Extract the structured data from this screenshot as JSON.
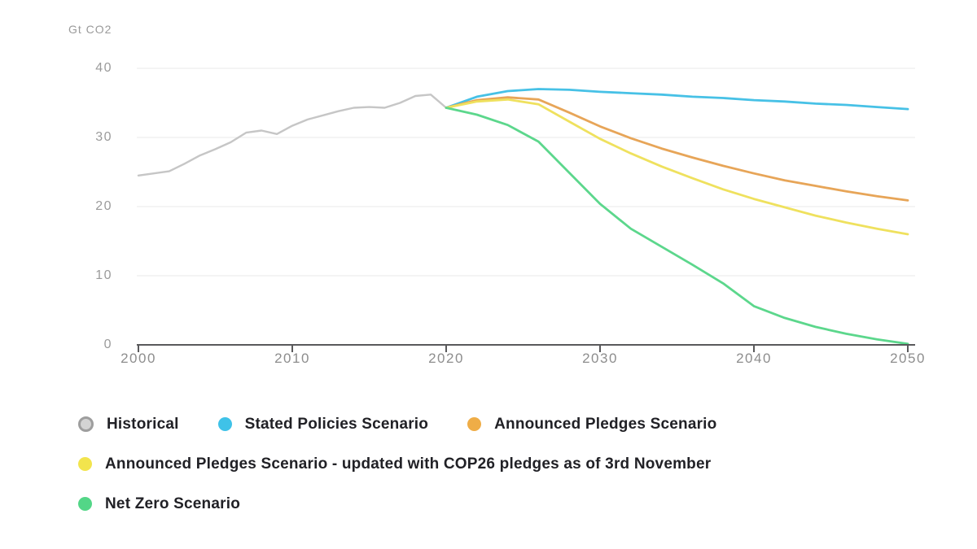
{
  "unit_label": "Gt CO2",
  "legend": {
    "items": [
      {
        "label": "Historical",
        "color": "#9e9e9e",
        "fill": "#d3d3d3",
        "ring": true
      },
      {
        "label": "Stated Policies Scenario",
        "color": "#3fc2e8",
        "ring": false
      },
      {
        "label": "Announced Pledges Scenario",
        "color": "#efad47",
        "ring": false
      },
      {
        "label": "Announced Pledges Scenario - updated with COP26 pledges as of 3rd November",
        "color": "#f2e44d",
        "ring": false
      },
      {
        "label": "Net Zero Scenario",
        "color": "#53d687",
        "ring": false
      }
    ]
  },
  "chart_data": {
    "type": "line",
    "title": "",
    "xlabel": "",
    "ylabel": "Gt CO2",
    "xlim": [
      2000,
      2050
    ],
    "ylim": [
      0,
      40
    ],
    "x_ticks": [
      2000,
      2010,
      2020,
      2030,
      2040,
      2050
    ],
    "y_ticks": [
      0,
      10,
      20,
      30,
      40
    ],
    "grid": "horizontal",
    "legend_position": "bottom",
    "series": [
      {
        "name": "Historical",
        "color": "#c6c6c6",
        "width": 2.4,
        "x": [
          2000,
          2001,
          2002,
          2003,
          2004,
          2005,
          2006,
          2007,
          2008,
          2009,
          2010,
          2011,
          2012,
          2013,
          2014,
          2015,
          2016,
          2017,
          2018,
          2019,
          2020
        ],
        "values": [
          24.5,
          24.8,
          25.1,
          26.2,
          27.4,
          28.3,
          29.3,
          30.7,
          31.0,
          30.5,
          31.7,
          32.6,
          33.2,
          33.8,
          34.3,
          34.4,
          34.3,
          35.0,
          36.0,
          36.2,
          34.3
        ]
      },
      {
        "name": "Stated Policies Scenario",
        "color": "#47c1e6",
        "width": 2.8,
        "x": [
          2020,
          2022,
          2024,
          2026,
          2028,
          2030,
          2032,
          2034,
          2036,
          2038,
          2040,
          2042,
          2044,
          2046,
          2048,
          2050
        ],
        "values": [
          34.3,
          35.9,
          36.7,
          37.0,
          36.9,
          36.6,
          36.4,
          36.2,
          35.9,
          35.7,
          35.4,
          35.2,
          34.9,
          34.7,
          34.4,
          34.1
        ]
      },
      {
        "name": "Announced Pledges Scenario",
        "color": "#e7a558",
        "width": 2.8,
        "x": [
          2020,
          2022,
          2024,
          2026,
          2028,
          2030,
          2032,
          2034,
          2036,
          2038,
          2040,
          2042,
          2044,
          2046,
          2048,
          2050
        ],
        "values": [
          34.3,
          35.4,
          35.8,
          35.5,
          33.6,
          31.6,
          29.9,
          28.4,
          27.1,
          25.9,
          24.8,
          23.8,
          23.0,
          22.2,
          21.5,
          20.9
        ]
      },
      {
        "name": "Announced Pledges Scenario - updated with COP26 pledges as of 3rd November",
        "color": "#efe15e",
        "width": 2.8,
        "x": [
          2020,
          2022,
          2024,
          2026,
          2028,
          2030,
          2032,
          2034,
          2036,
          2038,
          2040,
          2042,
          2044,
          2046,
          2048,
          2050
        ],
        "values": [
          34.3,
          35.2,
          35.5,
          34.8,
          32.3,
          29.8,
          27.7,
          25.8,
          24.1,
          22.5,
          21.1,
          19.9,
          18.7,
          17.7,
          16.8,
          16.0
        ]
      },
      {
        "name": "Net Zero Scenario",
        "color": "#5cd78c",
        "width": 2.8,
        "x": [
          2020,
          2022,
          2024,
          2026,
          2028,
          2030,
          2032,
          2034,
          2036,
          2038,
          2040,
          2042,
          2044,
          2046,
          2048,
          2050
        ],
        "values": [
          34.3,
          33.3,
          31.8,
          29.4,
          24.9,
          20.4,
          16.8,
          14.2,
          11.6,
          8.9,
          5.6,
          3.9,
          2.6,
          1.6,
          0.8,
          0.15
        ]
      }
    ]
  }
}
